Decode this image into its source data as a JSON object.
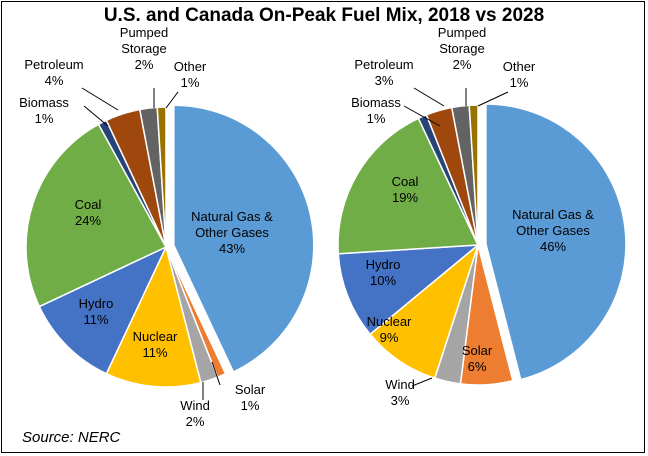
{
  "title": "U.S. and Canada On-Peak Fuel Mix, 2018 vs 2028",
  "source": "Source: NERC",
  "colors": {
    "natural_gas": "#5b9bd5",
    "solar": "#ed7d31",
    "wind": "#a5a5a5",
    "nuclear": "#ffc000",
    "hydro": "#4472c4",
    "coal": "#70ad47",
    "biomass": "#264478",
    "petroleum": "#9e480e",
    "pumped_storage": "#636363",
    "other": "#997300"
  },
  "chart_data": [
    {
      "type": "pie",
      "title": "2018",
      "slices": [
        {
          "key": "natural_gas",
          "name": "Natural Gas & Other Gases",
          "value": 43,
          "label_lines": [
            "Natural Gas &",
            "Other Gases",
            "43%"
          ]
        },
        {
          "key": "solar",
          "name": "Solar",
          "value": 1,
          "label_lines": [
            "Solar",
            "1%"
          ]
        },
        {
          "key": "wind",
          "name": "Wind",
          "value": 2,
          "label_lines": [
            "Wind",
            "2%"
          ]
        },
        {
          "key": "nuclear",
          "name": "Nuclear",
          "value": 11,
          "label_lines": [
            "Nuclear",
            "11%"
          ]
        },
        {
          "key": "hydro",
          "name": "Hydro",
          "value": 11,
          "label_lines": [
            "Hydro",
            "11%"
          ]
        },
        {
          "key": "coal",
          "name": "Coal",
          "value": 24,
          "label_lines": [
            "Coal",
            "24%"
          ]
        },
        {
          "key": "biomass",
          "name": "Biomass",
          "value": 1,
          "label_lines": [
            "Biomass",
            "1%"
          ]
        },
        {
          "key": "petroleum",
          "name": "Petroleum",
          "value": 4,
          "label_lines": [
            "Petroleum",
            "4%"
          ]
        },
        {
          "key": "pumped_storage",
          "name": "Pumped Storage",
          "value": 2,
          "label_lines": [
            "Pumped",
            "Storage",
            "2%"
          ]
        },
        {
          "key": "other",
          "name": "Other",
          "value": 1,
          "label_lines": [
            "Other",
            "1%"
          ]
        }
      ]
    },
    {
      "type": "pie",
      "title": "2028",
      "slices": [
        {
          "key": "natural_gas",
          "name": "Natural Gas & Other Gases",
          "value": 46,
          "label_lines": [
            "Natural Gas &",
            "Other Gases",
            "46%"
          ]
        },
        {
          "key": "solar",
          "name": "Solar",
          "value": 6,
          "label_lines": [
            "Solar",
            "6%"
          ]
        },
        {
          "key": "wind",
          "name": "Wind",
          "value": 3,
          "label_lines": [
            "Wind",
            "3%"
          ]
        },
        {
          "key": "nuclear",
          "name": "Nuclear",
          "value": 9,
          "label_lines": [
            "Nuclear",
            "9%"
          ]
        },
        {
          "key": "hydro",
          "name": "Hydro",
          "value": 10,
          "label_lines": [
            "Hydro",
            "10%"
          ]
        },
        {
          "key": "coal",
          "name": "Coal",
          "value": 19,
          "label_lines": [
            "Coal",
            "19%"
          ]
        },
        {
          "key": "biomass",
          "name": "Biomass",
          "value": 1,
          "label_lines": [
            "Biomass",
            "1%"
          ]
        },
        {
          "key": "petroleum",
          "name": "Petroleum",
          "value": 3,
          "label_lines": [
            "Petroleum",
            "3%"
          ]
        },
        {
          "key": "pumped_storage",
          "name": "Pumped Storage",
          "value": 2,
          "label_lines": [
            "Pumped",
            "Storage",
            "2%"
          ]
        },
        {
          "key": "other",
          "name": "Other",
          "value": 1,
          "label_lines": [
            "Other",
            "1%"
          ]
        }
      ]
    }
  ]
}
